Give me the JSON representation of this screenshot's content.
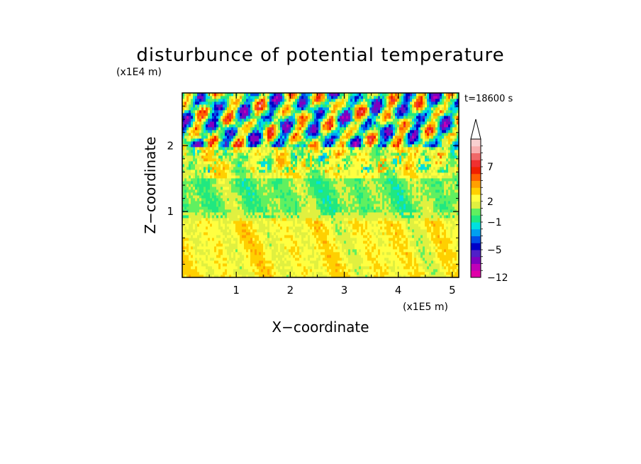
{
  "chart_data": {
    "type": "heatmap",
    "title": "disturbunce of potential temperature",
    "xlabel": "X−coordinate",
    "ylabel": "Z−coordinate",
    "x_unit": "(x1E5 m)",
    "y_unit": "(x1E4 m)",
    "time_label": "t=18600 s",
    "x_ticks": [
      "1",
      "2",
      "3",
      "4",
      "5"
    ],
    "y_ticks": [
      "1",
      "2"
    ],
    "x_tick_values": [
      1,
      2,
      3,
      4,
      5
    ],
    "y_tick_values": [
      1,
      2
    ],
    "xlim": [
      0,
      5.12
    ],
    "ylim": [
      0,
      2.8
    ],
    "colorbar": {
      "levels": [
        -12,
        -10,
        -8,
        -6,
        -5,
        -4,
        -3,
        -2,
        -1,
        0,
        1,
        2,
        3,
        4,
        5,
        6,
        7,
        8,
        9,
        10
      ],
      "colors": [
        "#e000a8",
        "#c000b8",
        "#8000c0",
        "#5020c8",
        "#0000c8",
        "#0050e8",
        "#00a0f0",
        "#00e0e0",
        "#20e880",
        "#60f060",
        "#e0f040",
        "#ffff40",
        "#ffd000",
        "#ffa000",
        "#ff6000",
        "#f02000",
        "#f03030",
        "#f06868",
        "#f8b0b0",
        "#f8d0d0"
      ],
      "tick_labels": [
        "−12",
        "−5",
        "−1",
        "2",
        "7"
      ],
      "tick_values": [
        -12,
        -5,
        -1,
        2,
        7
      ],
      "extend": "max"
    },
    "field_description_rows": [
      {
        "z_range": [
          0.0,
          0.9
        ],
        "dominant": [
          2,
          3
        ]
      },
      {
        "z_range": [
          0.9,
          1.5
        ],
        "dominant": [
          0,
          1
        ]
      },
      {
        "z_range": [
          1.5,
          2.0
        ],
        "dominant": [
          1,
          3
        ]
      },
      {
        "z_range": [
          2.0,
          2.8
        ],
        "dominant": [
          -5,
          5
        ]
      }
    ],
    "grid": false
  }
}
